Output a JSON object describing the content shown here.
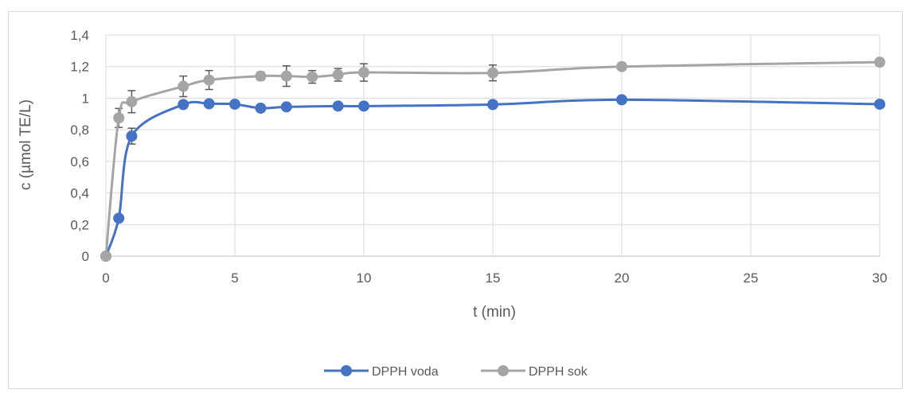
{
  "chart_data": {
    "type": "line",
    "title": "",
    "xlabel": "t (min)",
    "ylabel": "c (µmol TE/L)",
    "xlim": [
      0,
      30
    ],
    "ylim": [
      0,
      1.4
    ],
    "x_ticks": [
      "0",
      "5",
      "10",
      "15",
      "20",
      "25",
      "30"
    ],
    "y_ticks": [
      "0",
      "0,2",
      "0,4",
      "0,6",
      "0,8",
      "1",
      "1,2",
      "1,4"
    ],
    "grid": "vertical and horizontal major gridlines",
    "legend_position": "bottom",
    "series": [
      {
        "name": "DPPH voda",
        "color": "#4472c4",
        "x": [
          0,
          0.5,
          1,
          3,
          4,
          5,
          6,
          7,
          9,
          10,
          15,
          20,
          30
        ],
        "y": [
          0,
          0.24,
          0.76,
          0.96,
          0.965,
          0.962,
          0.937,
          0.945,
          0.95,
          0.95,
          0.96,
          0.99,
          0.962
        ],
        "error": [
          0,
          0,
          0.05,
          0,
          0,
          0,
          0,
          0,
          0,
          0,
          0,
          0,
          0
        ]
      },
      {
        "name": "DPPH sok",
        "color": "#a5a5a5",
        "x": [
          0,
          0.5,
          1,
          3,
          4,
          6,
          7,
          8,
          9,
          10,
          15,
          20,
          30
        ],
        "y": [
          0,
          0.875,
          0.978,
          1.075,
          1.115,
          1.14,
          1.14,
          1.135,
          1.148,
          1.163,
          1.16,
          1.2,
          1.228
        ],
        "error": [
          0,
          0.06,
          0.07,
          0.065,
          0.06,
          0.025,
          0.065,
          0.04,
          0.04,
          0.055,
          0.05,
          0.01,
          0
        ]
      }
    ]
  }
}
